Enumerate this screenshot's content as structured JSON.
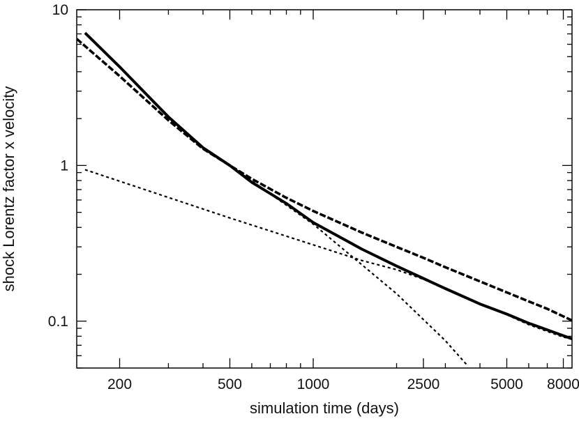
{
  "chart_data": {
    "type": "line",
    "title": "",
    "xlabel": "simulation time (days)",
    "ylabel": "shock Lorentz factor x velocity",
    "x_scale": "log",
    "y_scale": "log",
    "xlim": [
      140,
      8600
    ],
    "ylim": [
      0.05,
      10
    ],
    "grid": false,
    "legend": "none",
    "x_ticks": [
      {
        "value": 200,
        "label": "200"
      },
      {
        "value": 500,
        "label": "500"
      },
      {
        "value": 1000,
        "label": "1000"
      },
      {
        "value": 2500,
        "label": "2500"
      },
      {
        "value": 5000,
        "label": "5000"
      },
      {
        "value": 8000,
        "label": "8000"
      }
    ],
    "y_ticks": [
      {
        "value": 10,
        "label": "10"
      },
      {
        "value": 1,
        "label": "1"
      },
      {
        "value": 0.1,
        "label": "0.1"
      }
    ],
    "series": [
      {
        "style": "solid",
        "color": "#000000",
        "x": [
          150,
          200,
          300,
          400,
          500,
          600,
          800,
          1000,
          1500,
          2000,
          2500,
          3000,
          4000,
          5000,
          6000,
          7000,
          8600
        ],
        "y": [
          7.1,
          4.3,
          2.05,
          1.3,
          1.0,
          0.78,
          0.57,
          0.43,
          0.29,
          0.226,
          0.188,
          0.162,
          0.129,
          0.111,
          0.097,
          0.088,
          0.077
        ]
      },
      {
        "style": "dashed",
        "color": "#000000",
        "x": [
          140,
          200,
          300,
          400,
          500,
          600,
          800,
          1000,
          1500,
          2000,
          2500,
          3000,
          4000,
          5000,
          6000,
          7000,
          8600
        ],
        "y": [
          6.5,
          3.75,
          1.95,
          1.28,
          1.0,
          0.82,
          0.62,
          0.51,
          0.37,
          0.3,
          0.255,
          0.222,
          0.18,
          0.153,
          0.134,
          0.12,
          0.101
        ]
      },
      {
        "style": "dotted",
        "color": "#000000",
        "x": [
          150,
          500,
          1500,
          2000,
          2500,
          3000,
          4000,
          5000,
          6000,
          7000,
          8000,
          8600
        ],
        "y": [
          0.94,
          0.46,
          0.245,
          0.214,
          0.186,
          0.162,
          0.128,
          0.11,
          0.095,
          0.086,
          0.079,
          0.077
        ]
      },
      {
        "style": "dotted",
        "color": "#000000",
        "x": [
          500,
          1000,
          2000,
          3000,
          3600
        ],
        "y": [
          1.0,
          0.42,
          0.15,
          0.075,
          0.052
        ]
      }
    ]
  }
}
